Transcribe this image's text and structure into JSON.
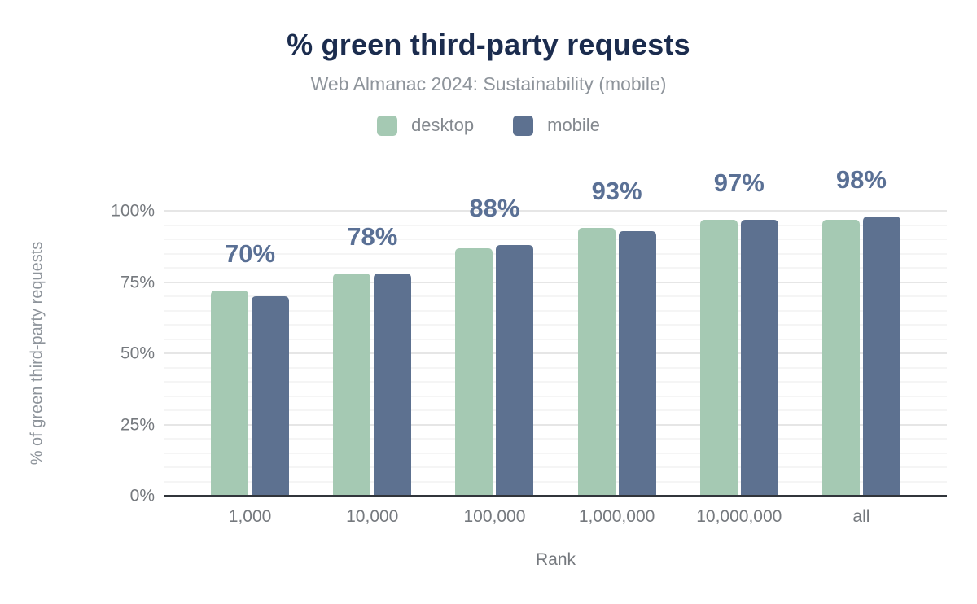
{
  "chart_data": {
    "type": "bar",
    "title": "% green third-party requests",
    "subtitle": "Web Almanac 2024: Sustainability (mobile)",
    "xlabel": "Rank",
    "ylabel": "% of green third-party requests",
    "categories": [
      "1,000",
      "10,000",
      "100,000",
      "1,000,000",
      "10,000,000",
      "all"
    ],
    "series": [
      {
        "name": "desktop",
        "color": "#a5c9b3",
        "values": [
          72,
          78,
          87,
          94,
          97,
          97
        ]
      },
      {
        "name": "mobile",
        "color": "#5d7190",
        "values": [
          70,
          78,
          88,
          93,
          97,
          98
        ]
      }
    ],
    "bar_labels": [
      "70%",
      "78%",
      "88%",
      "93%",
      "97%",
      "98%"
    ],
    "ylim": [
      0,
      100
    ],
    "ytick_values": [
      0,
      25,
      50,
      75,
      100
    ],
    "ytick_labels": [
      "0%",
      "25%",
      "50%",
      "75%",
      "100%"
    ],
    "minor_grid_step": 5,
    "grid": "on",
    "legend_position": "top"
  },
  "colors": {
    "title": "#1b2c4e",
    "subtitle": "#8e949b",
    "legend_text": "#84898f",
    "bar_value_label": "#5a7095",
    "axis_tick_text": "#75797e",
    "axis_title_text": "#8e949b",
    "baseline": "#31353b",
    "grid_major": "#e6e6e6",
    "grid_minor": "#f5f5f5"
  }
}
